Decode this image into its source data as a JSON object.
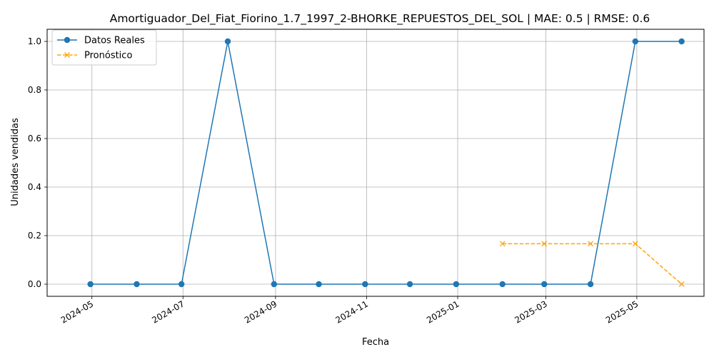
{
  "chart_data": {
    "type": "line",
    "title": "Amortiguador_Del_Fiat_Fiorino_1.7_1997_2-BHORKE_REPUESTOS_DEL_SOL | MAE: 0.5 | RMSE: 0.6",
    "xlabel": "Fecha",
    "ylabel": "Unidades vendidas",
    "xlim": [
      "2024-04-01",
      "2025-06-15"
    ],
    "ylim": [
      -0.05,
      1.05
    ],
    "grid": true,
    "legend_position": "upper-left",
    "x_ticks": [
      "2024-05-01",
      "2024-07-01",
      "2024-09-01",
      "2024-11-01",
      "2025-01-01",
      "2025-03-01",
      "2025-05-01"
    ],
    "x_tick_labels": [
      "2024-05",
      "2024-07",
      "2024-09",
      "2024-11",
      "2025-01",
      "2025-03",
      "2025-05"
    ],
    "y_ticks": [
      0.0,
      0.2,
      0.4,
      0.6,
      0.8,
      1.0
    ],
    "y_tick_labels": [
      "0.0",
      "0.2",
      "0.4",
      "0.6",
      "0.8",
      "1.0"
    ],
    "series": [
      {
        "name": "Datos Reales",
        "color": "#1f77b4",
        "line_style": "solid",
        "marker": "circle",
        "x": [
          "2024-04-30",
          "2024-05-31",
          "2024-06-30",
          "2024-07-31",
          "2024-08-31",
          "2024-09-30",
          "2024-10-31",
          "2024-11-30",
          "2024-12-31",
          "2025-01-31",
          "2025-02-28",
          "2025-03-31",
          "2025-04-30",
          "2025-05-31"
        ],
        "y": [
          0,
          0,
          0,
          1,
          0,
          0,
          0,
          0,
          0,
          0,
          0,
          0,
          1,
          1
        ]
      },
      {
        "name": "Pronóstico",
        "color": "#ffa500",
        "line_style": "dashed",
        "marker": "x",
        "x": [
          "2025-01-31",
          "2025-02-28",
          "2025-03-31",
          "2025-04-30",
          "2025-05-31"
        ],
        "y": [
          0.1667,
          0.1667,
          0.1667,
          0.1667,
          0
        ]
      }
    ]
  }
}
